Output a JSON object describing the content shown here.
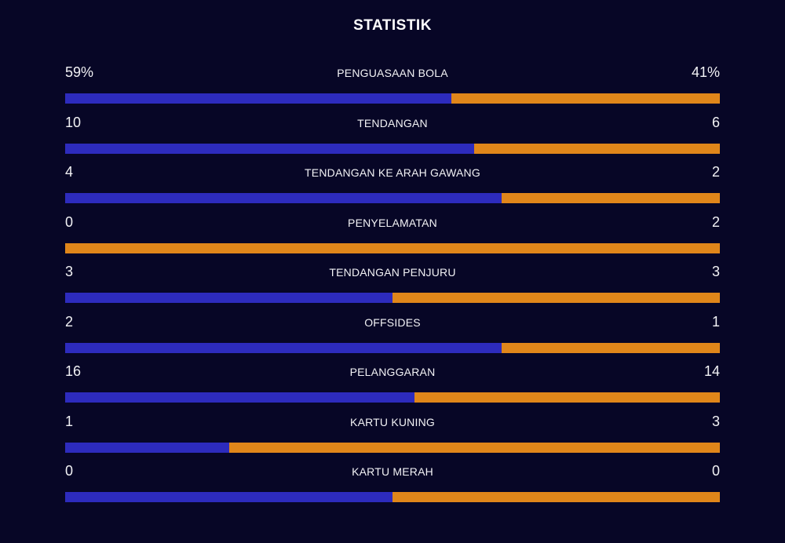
{
  "title": "STATISTIK",
  "colors": {
    "background": "#070626",
    "home_bar": "#2d2bbd",
    "away_bar": "#e0861a"
  },
  "stats": [
    {
      "label": "PENGUASAAN BOLA",
      "left": "59%",
      "right": "41%",
      "home_value": 59,
      "away_value": 41
    },
    {
      "label": "TENDANGAN",
      "left": "10",
      "right": "6",
      "home_value": 10,
      "away_value": 6
    },
    {
      "label": "TENDANGAN KE ARAH GAWANG",
      "left": "4",
      "right": "2",
      "home_value": 4,
      "away_value": 2
    },
    {
      "label": "PENYELAMATAN",
      "left": "0",
      "right": "2",
      "home_value": 0,
      "away_value": 2
    },
    {
      "label": "TENDANGAN PENJURU",
      "left": "3",
      "right": "3",
      "home_value": 3,
      "away_value": 3
    },
    {
      "label": "OFFSIDES",
      "left": "2",
      "right": "1",
      "home_value": 2,
      "away_value": 1
    },
    {
      "label": "PELANGGARAN",
      "left": "16",
      "right": "14",
      "home_value": 16,
      "away_value": 14
    },
    {
      "label": "KARTU KUNING",
      "left": "1",
      "right": "3",
      "home_value": 1,
      "away_value": 3
    },
    {
      "label": "KARTU MERAH",
      "left": "0",
      "right": "0",
      "home_value": 0,
      "away_value": 0
    }
  ]
}
